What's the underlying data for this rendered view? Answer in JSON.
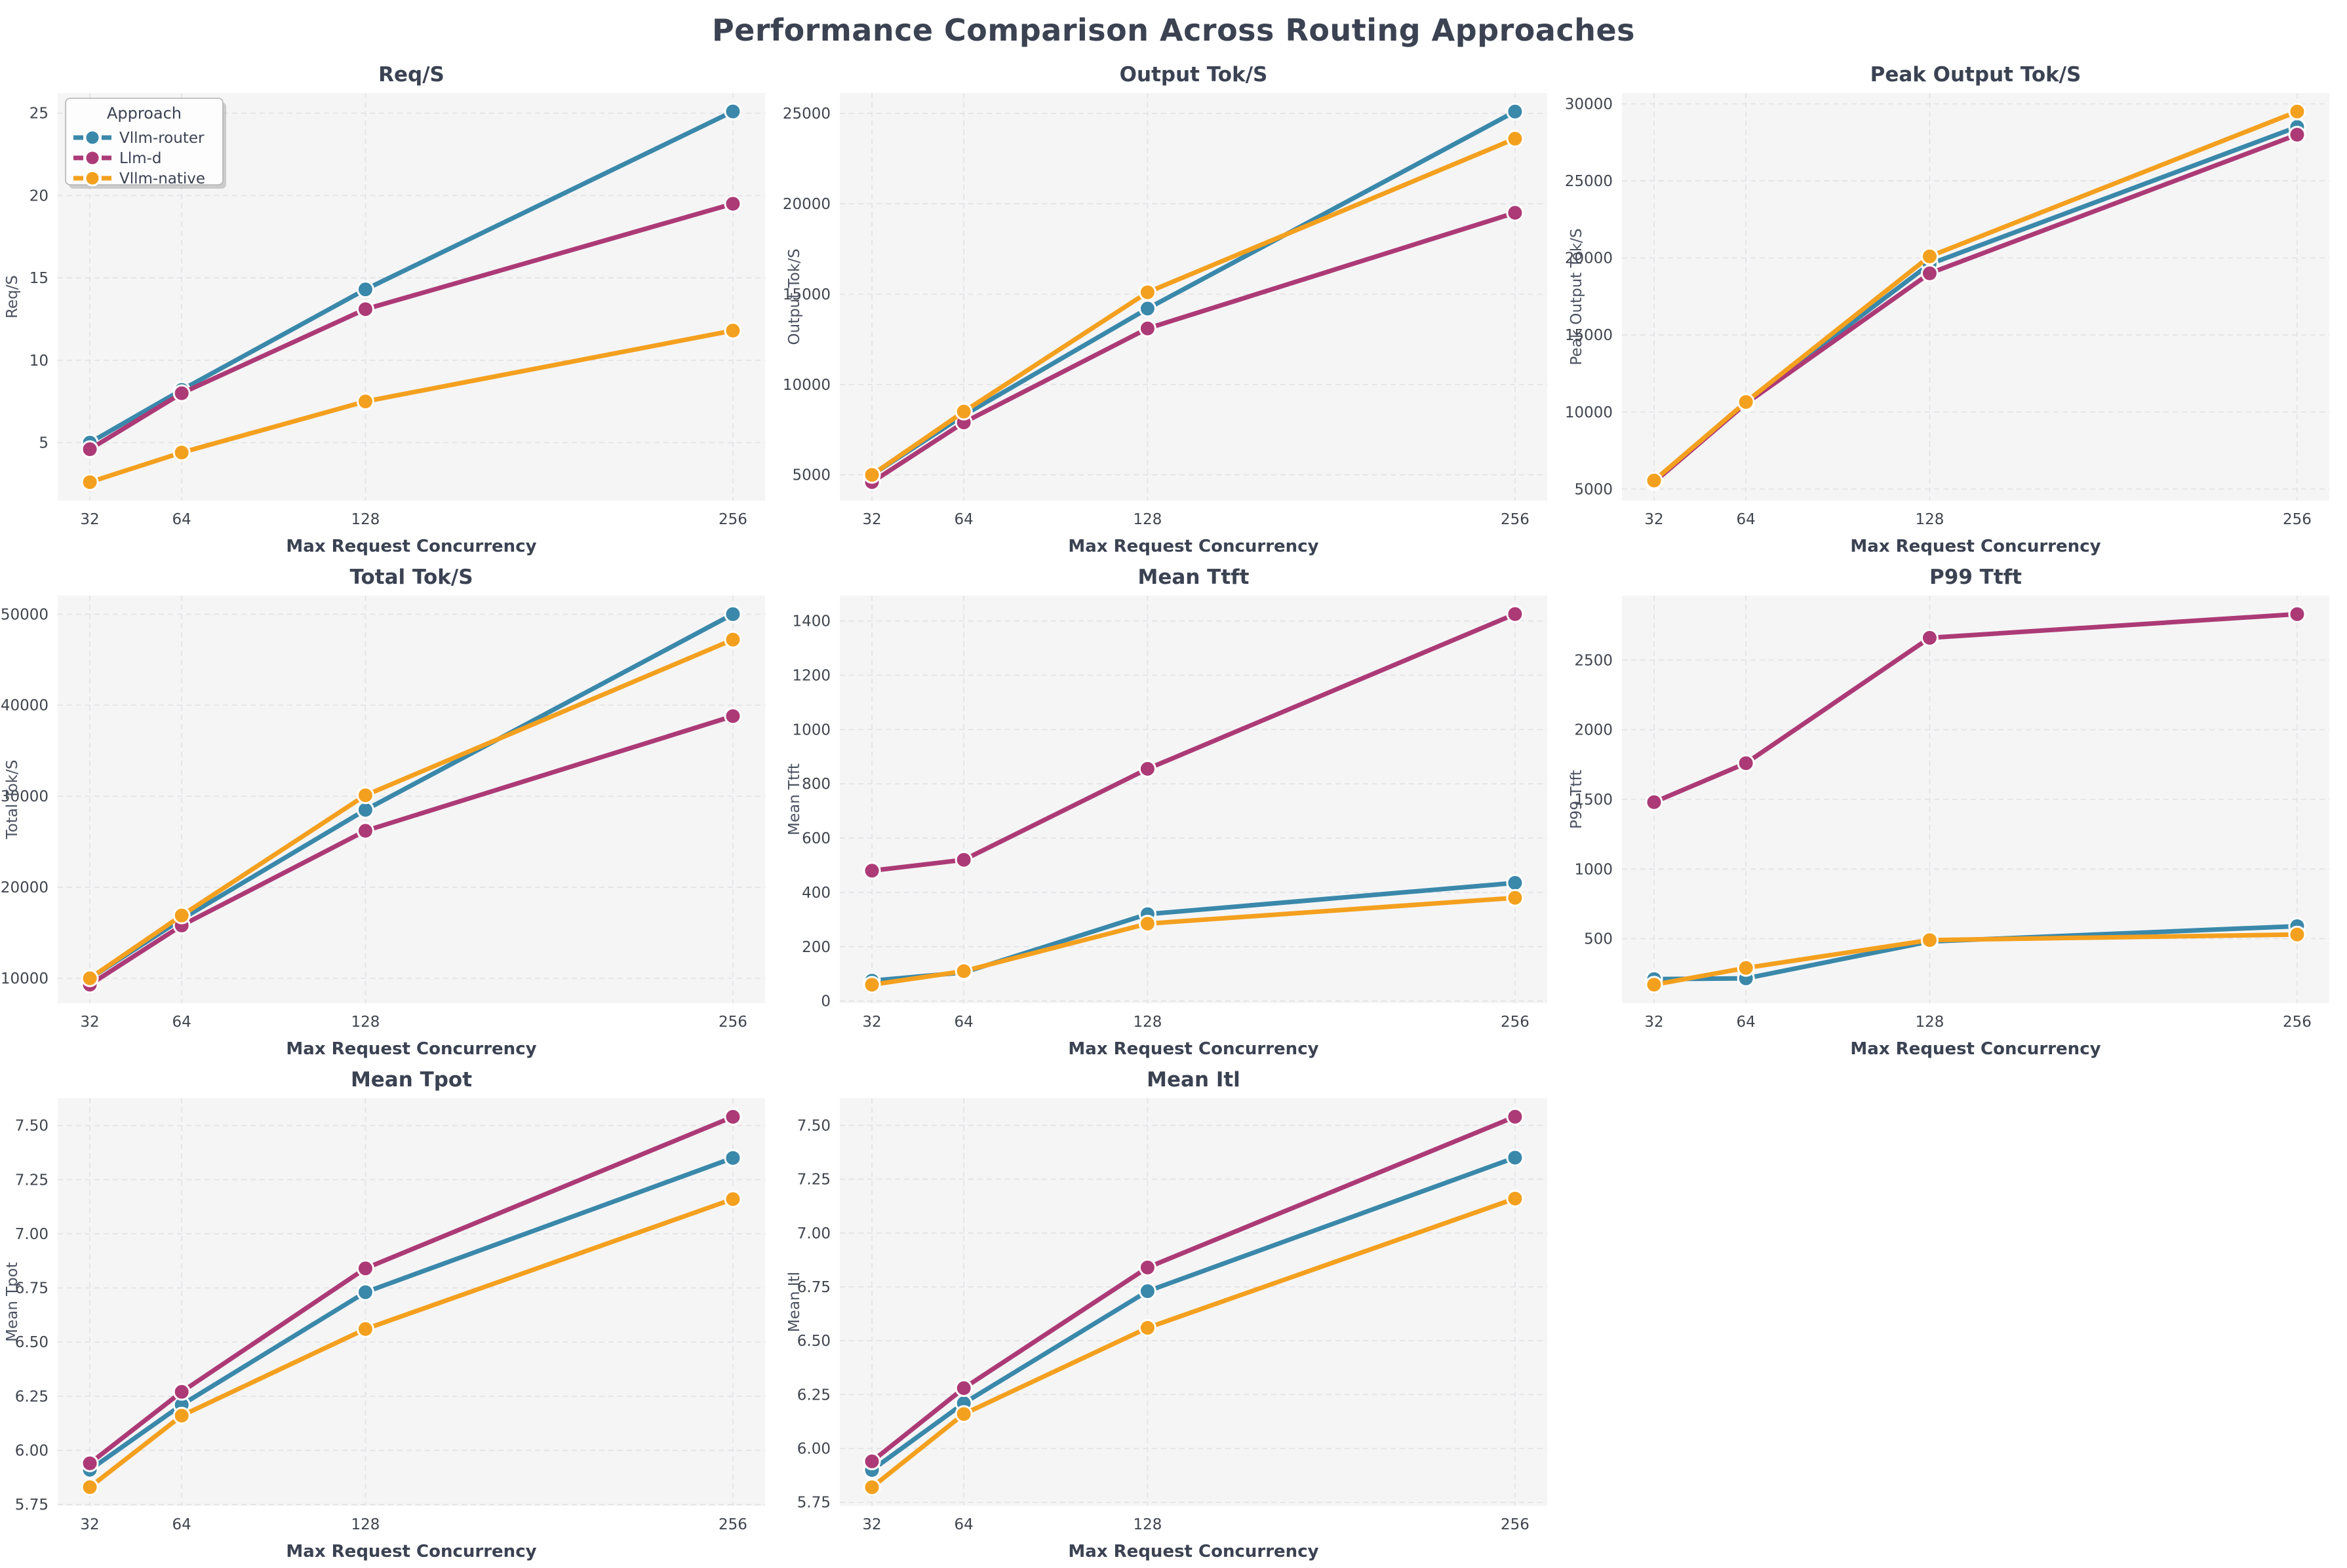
{
  "title": "Performance Comparison Across Routing Approaches",
  "legend": {
    "title": "Approach"
  },
  "approaches": [
    {
      "name": "Vllm-router",
      "color": "#3a88aa"
    },
    {
      "name": "Llm-d",
      "color": "#ac3a76"
    },
    {
      "name": "Vllm-native",
      "color": "#f4a01f"
    }
  ],
  "style": {
    "plot_bg": "#f5f5f6",
    "grid_color": "#e2e2e6",
    "title_color": "#3b4252",
    "tick_color": "#40454e",
    "axis_label_color": "#3b4252",
    "ylabel_color": "#4a5160"
  },
  "x_axis": {
    "label": "Max Request Concurrency",
    "values": [
      32,
      64,
      128,
      256
    ],
    "tick_labels": [
      "32",
      "64",
      "128",
      "256"
    ],
    "xlim": [
      20.8,
      267.2
    ]
  },
  "chart_data": [
    {
      "type": "line",
      "title": "Req/S",
      "ylabel": "Req/S",
      "xlabel": "Max Request Concurrency",
      "x": [
        32,
        64,
        128,
        256
      ],
      "series": [
        {
          "name": "Vllm-router",
          "values": [
            5.0,
            8.2,
            14.3,
            25.1
          ]
        },
        {
          "name": "Llm-d",
          "values": [
            4.6,
            8.0,
            13.1,
            19.5
          ]
        },
        {
          "name": "Vllm-native",
          "values": [
            2.6,
            4.4,
            7.5,
            11.8
          ]
        }
      ],
      "yticks": [
        5,
        10,
        15,
        20,
        25
      ],
      "ytick_labels": [
        "5",
        "10",
        "15",
        "20",
        "25"
      ],
      "ylim": [
        1.48,
        26.22
      ],
      "grid": true,
      "legend": true,
      "legend_position": "upper-left"
    },
    {
      "type": "line",
      "title": "Output Tok/S",
      "ylabel": "Output Tok/S",
      "xlabel": "Max Request Concurrency",
      "x": [
        32,
        64,
        128,
        256
      ],
      "series": [
        {
          "name": "Vllm-router",
          "values": [
            5000,
            8300,
            14200,
            25100
          ]
        },
        {
          "name": "Llm-d",
          "values": [
            4600,
            7900,
            13100,
            19500
          ]
        },
        {
          "name": "Vllm-native",
          "values": [
            5000,
            8500,
            15100,
            23600
          ]
        }
      ],
      "yticks": [
        5000,
        10000,
        15000,
        20000,
        25000
      ],
      "ytick_labels": [
        "5000",
        "10000",
        "15000",
        "20000",
        "25000"
      ],
      "ylim": [
        3575,
        26125
      ],
      "grid": true,
      "legend": false
    },
    {
      "type": "line",
      "title": "Peak Output Tok/S",
      "ylabel": "Peak Output Tok/S",
      "xlabel": "Max Request Concurrency",
      "x": [
        32,
        64,
        128,
        256
      ],
      "series": [
        {
          "name": "Vllm-router",
          "values": [
            5500,
            10600,
            19600,
            28500
          ]
        },
        {
          "name": "Llm-d",
          "values": [
            5450,
            10550,
            19000,
            28000
          ]
        },
        {
          "name": "Vllm-native",
          "values": [
            5550,
            10650,
            20100,
            29500
          ]
        }
      ],
      "yticks": [
        5000,
        10000,
        15000,
        20000,
        25000,
        30000
      ],
      "ytick_labels": [
        "5000",
        "10000",
        "15000",
        "20000",
        "25000",
        "30000"
      ],
      "ylim": [
        4248,
        30702
      ],
      "grid": true,
      "legend": false
    },
    {
      "type": "line",
      "title": "Total Tok/S",
      "ylabel": "Total Tok/S",
      "xlabel": "Max Request Concurrency",
      "x": [
        32,
        64,
        128,
        256
      ],
      "series": [
        {
          "name": "Vllm-router",
          "values": [
            10000,
            16500,
            28500,
            50000
          ]
        },
        {
          "name": "Llm-d",
          "values": [
            9300,
            15800,
            26200,
            38800
          ]
        },
        {
          "name": "Vllm-native",
          "values": [
            10000,
            16900,
            30100,
            47200
          ]
        }
      ],
      "yticks": [
        10000,
        20000,
        30000,
        40000,
        50000
      ],
      "ytick_labels": [
        "10000",
        "20000",
        "30000",
        "40000",
        "50000"
      ],
      "ylim": [
        7265,
        52035
      ],
      "grid": true,
      "legend": false
    },
    {
      "type": "line",
      "title": "Mean Ttft",
      "ylabel": "Mean Ttft",
      "xlabel": "Max Request Concurrency",
      "x": [
        32,
        64,
        128,
        256
      ],
      "series": [
        {
          "name": "Vllm-router",
          "values": [
            75,
            105,
            320,
            435
          ]
        },
        {
          "name": "Llm-d",
          "values": [
            480,
            520,
            855,
            1425
          ]
        },
        {
          "name": "Vllm-native",
          "values": [
            60,
            110,
            285,
            380
          ]
        }
      ],
      "yticks": [
        0,
        200,
        400,
        600,
        800,
        1000,
        1200,
        1400
      ],
      "ytick_labels": [
        "0",
        "200",
        "400",
        "600",
        "800",
        "1000",
        "1200",
        "1400"
      ],
      "ylim": [
        -8,
        1493
      ],
      "grid": true,
      "legend": false
    },
    {
      "type": "line",
      "title": "P99 Ttft",
      "ylabel": "P99 Ttft",
      "xlabel": "Max Request Concurrency",
      "x": [
        32,
        64,
        128,
        256
      ],
      "series": [
        {
          "name": "Vllm-router",
          "values": [
            210,
            215,
            480,
            590
          ]
        },
        {
          "name": "Llm-d",
          "values": [
            1480,
            1760,
            2660,
            2830
          ]
        },
        {
          "name": "Vllm-native",
          "values": [
            170,
            290,
            490,
            530
          ]
        }
      ],
      "yticks": [
        500,
        1000,
        1500,
        2000,
        2500
      ],
      "ytick_labels": [
        "500",
        "1000",
        "1500",
        "2000",
        "2500"
      ],
      "ylim": [
        37,
        2963
      ],
      "grid": true,
      "legend": false
    },
    {
      "type": "line",
      "title": "Mean Tpot",
      "ylabel": "Mean Tpot",
      "xlabel": "Max Request Concurrency",
      "x": [
        32,
        64,
        128,
        256
      ],
      "series": [
        {
          "name": "Vllm-router",
          "values": [
            5.91,
            6.21,
            6.73,
            7.35
          ]
        },
        {
          "name": "Llm-d",
          "values": [
            5.94,
            6.27,
            6.84,
            7.54
          ]
        },
        {
          "name": "Vllm-native",
          "values": [
            5.83,
            6.16,
            6.56,
            7.16
          ]
        }
      ],
      "yticks": [
        5.75,
        6.0,
        6.25,
        6.5,
        6.75,
        7.0,
        7.25,
        7.5
      ],
      "ytick_labels": [
        "5.75",
        "6.00",
        "6.25",
        "6.50",
        "6.75",
        "7.00",
        "7.25",
        "7.50"
      ],
      "ylim": [
        5.744,
        7.626
      ],
      "grid": true,
      "legend": false
    },
    {
      "type": "line",
      "title": "Mean Itl",
      "ylabel": "Mean Itl",
      "xlabel": "Max Request Concurrency",
      "x": [
        32,
        64,
        128,
        256
      ],
      "series": [
        {
          "name": "Vllm-router",
          "values": [
            5.9,
            6.21,
            6.73,
            7.35
          ]
        },
        {
          "name": "Llm-d",
          "values": [
            5.94,
            6.28,
            6.84,
            7.54
          ]
        },
        {
          "name": "Vllm-native",
          "values": [
            5.82,
            6.16,
            6.56,
            7.16
          ]
        }
      ],
      "yticks": [
        5.75,
        6.0,
        6.25,
        6.5,
        6.75,
        7.0,
        7.25,
        7.5
      ],
      "ytick_labels": [
        "5.75",
        "6.00",
        "6.25",
        "6.50",
        "6.75",
        "7.00",
        "7.25",
        "7.50"
      ],
      "ylim": [
        5.734,
        7.626
      ],
      "grid": true,
      "legend": false
    }
  ]
}
